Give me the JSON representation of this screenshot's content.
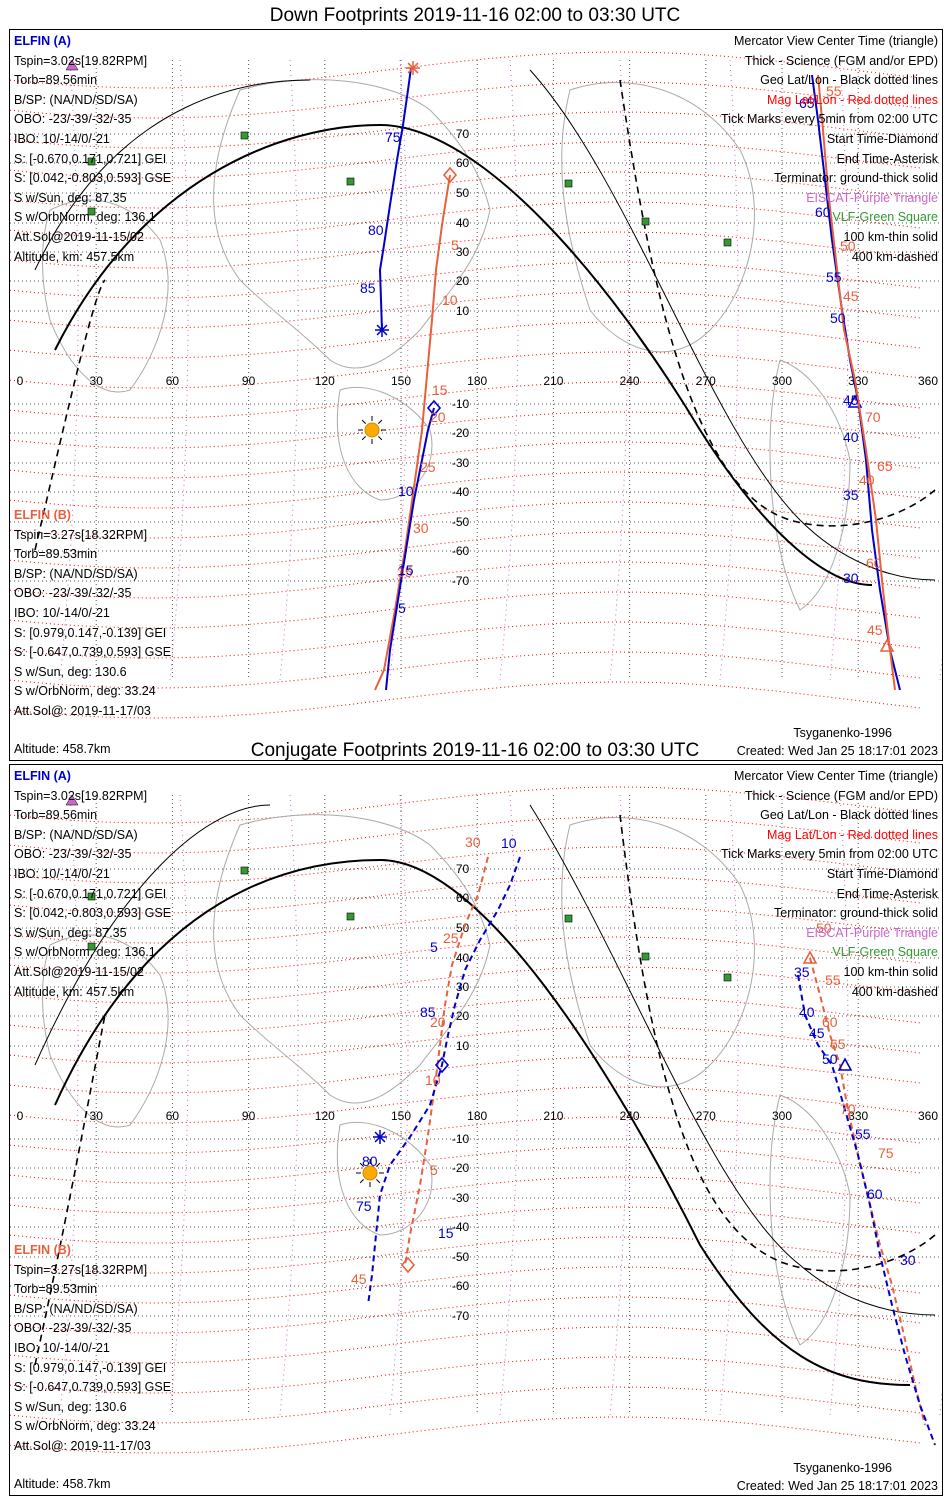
{
  "panels": [
    {
      "title": "Down Footprints 2019-11-16 02:00 to 03:30 UTC",
      "elfin_a": {
        "name": "ELFIN (A)",
        "lines": [
          "Tspin=3.02s[19.82RPM]",
          "Torb=89.56min",
          "B/SP: (NA/ND/SD/SA)",
          "OBO: -23/-39/-32/-35",
          "IBO: 10/-14/0/-21",
          "S: [-0.670,0.171,0.721] GEI",
          "S: [0.042,-0.803,0.593] GSE",
          "S w/Sun, deg: 87.35",
          "S w/OrbNorm, deg: 136.1",
          "Att.Sol@2019-11-15/02",
          "Altitude, km: 457.5km"
        ]
      },
      "elfin_b": {
        "name": "ELFIN (B)",
        "lines": [
          "Tspin=3.27s[18.32RPM]",
          "Torb=89.53min",
          "B/SP: (NA/ND/SD/SA)",
          "OBO: -23/-39/-32/-35",
          "IBO: 10/-14/0/-21",
          "S: [0.979,0.147,-0.139] GEI",
          "S: [-0.647,0.739,0.593] GSE",
          "S w/Sun, deg: 130.6",
          "S w/OrbNorm, deg: 33.24",
          "Att.Sol@: 2019-11-17/03",
          "Altitude: 458.7km"
        ]
      },
      "tick_labels": [
        {
          "t": "75",
          "c": "blue"
        },
        {
          "t": "80",
          "c": "blue"
        },
        {
          "t": "85",
          "c": "blue"
        },
        {
          "t": "5",
          "c": "orange"
        },
        {
          "t": "10",
          "c": "orange"
        },
        {
          "t": "15",
          "c": "orange"
        },
        {
          "t": "20",
          "c": "orange"
        },
        {
          "t": "25",
          "c": "orange"
        },
        {
          "t": "30",
          "c": "orange"
        },
        {
          "t": "35",
          "c": "orange"
        },
        {
          "t": "5",
          "c": "blue"
        },
        {
          "t": "10",
          "c": "blue"
        },
        {
          "t": "15",
          "c": "blue"
        },
        {
          "t": "65",
          "c": "blue"
        },
        {
          "t": "60",
          "c": "blue"
        },
        {
          "t": "55",
          "c": "blue"
        },
        {
          "t": "50",
          "c": "blue"
        },
        {
          "t": "45",
          "c": "blue"
        },
        {
          "t": "40",
          "c": "blue"
        },
        {
          "t": "35",
          "c": "blue"
        },
        {
          "t": "30",
          "c": "blue"
        },
        {
          "t": "40",
          "c": "orange"
        },
        {
          "t": "45",
          "c": "orange"
        },
        {
          "t": "70",
          "c": "orange"
        },
        {
          "t": "65",
          "c": "orange"
        },
        {
          "t": "60",
          "c": "orange"
        },
        {
          "t": "55",
          "c": "orange"
        },
        {
          "t": "50",
          "c": "orange"
        },
        {
          "t": "45",
          "c": "orange"
        }
      ]
    },
    {
      "title": "Conjugate Footprints 2019-11-16 02:00 to 03:30 UTC",
      "elfin_a": {
        "name": "ELFIN (A)",
        "lines": [
          "Tspin=3.02s[19.82RPM]",
          "Torb=89.56min",
          "B/SP: (NA/ND/SD/SA)",
          "OBO: -23/-39/-32/-35",
          "IBO: 10/-14/0/-21",
          "S: [-0.670,0.171,0.721] GEI",
          "S: [0.042,-0.803,0.593] GSE",
          "S w/Sun, deg: 87.35",
          "S w/OrbNorm, deg: 136.1",
          "Att.Sol@2019-11-15/02",
          "Altitude, km: 457.5km"
        ]
      },
      "elfin_b": {
        "name": "ELFIN (B)",
        "lines": [
          "Tspin=3.27s[18.32RPM]",
          "Torb=89.53min",
          "B/SP: (NA/ND/SD/SA)",
          "OBO: -23/-39/-32/-35",
          "IBO: 10/-14/0/-21",
          "S: [0.979,0.147,-0.139] GEI",
          "S: [-0.647,0.739,0.593] GSE",
          "S w/Sun, deg: 130.6",
          "S w/OrbNorm, deg: 33.24",
          "Att.Sol@: 2019-11-17/03",
          "Altitude: 458.7km"
        ]
      },
      "tick_labels": [
        {
          "t": "30",
          "c": "orange"
        },
        {
          "t": "25",
          "c": "orange"
        },
        {
          "t": "20",
          "c": "orange"
        },
        {
          "t": "10",
          "c": "orange"
        },
        {
          "t": "5",
          "c": "orange"
        },
        {
          "t": "15",
          "c": "blue"
        },
        {
          "t": "10",
          "c": "blue"
        },
        {
          "t": "5",
          "c": "blue"
        },
        {
          "t": "85",
          "c": "blue"
        },
        {
          "t": "80",
          "c": "blue"
        },
        {
          "t": "75",
          "c": "blue"
        },
        {
          "t": "45",
          "c": "orange"
        },
        {
          "t": "50",
          "c": "orange"
        },
        {
          "t": "55",
          "c": "orange"
        },
        {
          "t": "60",
          "c": "orange"
        },
        {
          "t": "65",
          "c": "orange"
        },
        {
          "t": "70",
          "c": "orange"
        },
        {
          "t": "75",
          "c": "orange"
        },
        {
          "t": "30",
          "c": "blue"
        },
        {
          "t": "35",
          "c": "blue"
        },
        {
          "t": "40",
          "c": "blue"
        },
        {
          "t": "45",
          "c": "blue"
        },
        {
          "t": "50",
          "c": "blue"
        },
        {
          "t": "55",
          "c": "blue"
        },
        {
          "t": "60",
          "c": "blue"
        }
      ]
    }
  ],
  "legend": [
    {
      "text": "Mercator View Center Time (triangle)",
      "color": "black"
    },
    {
      "text": "Thick - Science (FGM and/or EPD)",
      "color": "black"
    },
    {
      "text": "Geo Lat/Lon - Black dotted lines",
      "color": "black"
    },
    {
      "text": "Mag Lat/Lon - Red dotted lines",
      "color": "red"
    },
    {
      "text": "Tick Marks every 5min from 02:00 UTC",
      "color": "black"
    },
    {
      "text": "Start Time-Diamond",
      "color": "black"
    },
    {
      "text": "End Time-Asterisk",
      "color": "black"
    },
    {
      "text": "Terminator: ground-thick solid",
      "color": "black"
    },
    {
      "text": "EISCAT-Purple Triangle",
      "color": "purple"
    },
    {
      "text": "VLF-Green Square",
      "color": "green"
    },
    {
      "text": "100 km-thin solid",
      "color": "black"
    },
    {
      "text": "400 km-dashed",
      "color": "black"
    }
  ],
  "longitude_labels": [
    "0",
    "30",
    "60",
    "90",
    "120",
    "150",
    "180",
    "210",
    "240",
    "270",
    "300",
    "330",
    "360"
  ],
  "latitude_labels": [
    "70",
    "60",
    "50",
    "40",
    "30",
    "20",
    "10",
    "-10",
    "-20",
    "-30",
    "-40",
    "-50",
    "-60",
    "-70"
  ],
  "model": "Tsyganenko-1996",
  "created": "Created: Wed Jan 25 18:17:01 2023",
  "colors": {
    "elfin_a": "#0000cc",
    "elfin_b": "#e8603c",
    "mag_grid": "#ff0000",
    "geo_grid": "#000000",
    "eiscat": "#cc66cc",
    "vlf": "#339933",
    "sun": "#ffaa00"
  }
}
